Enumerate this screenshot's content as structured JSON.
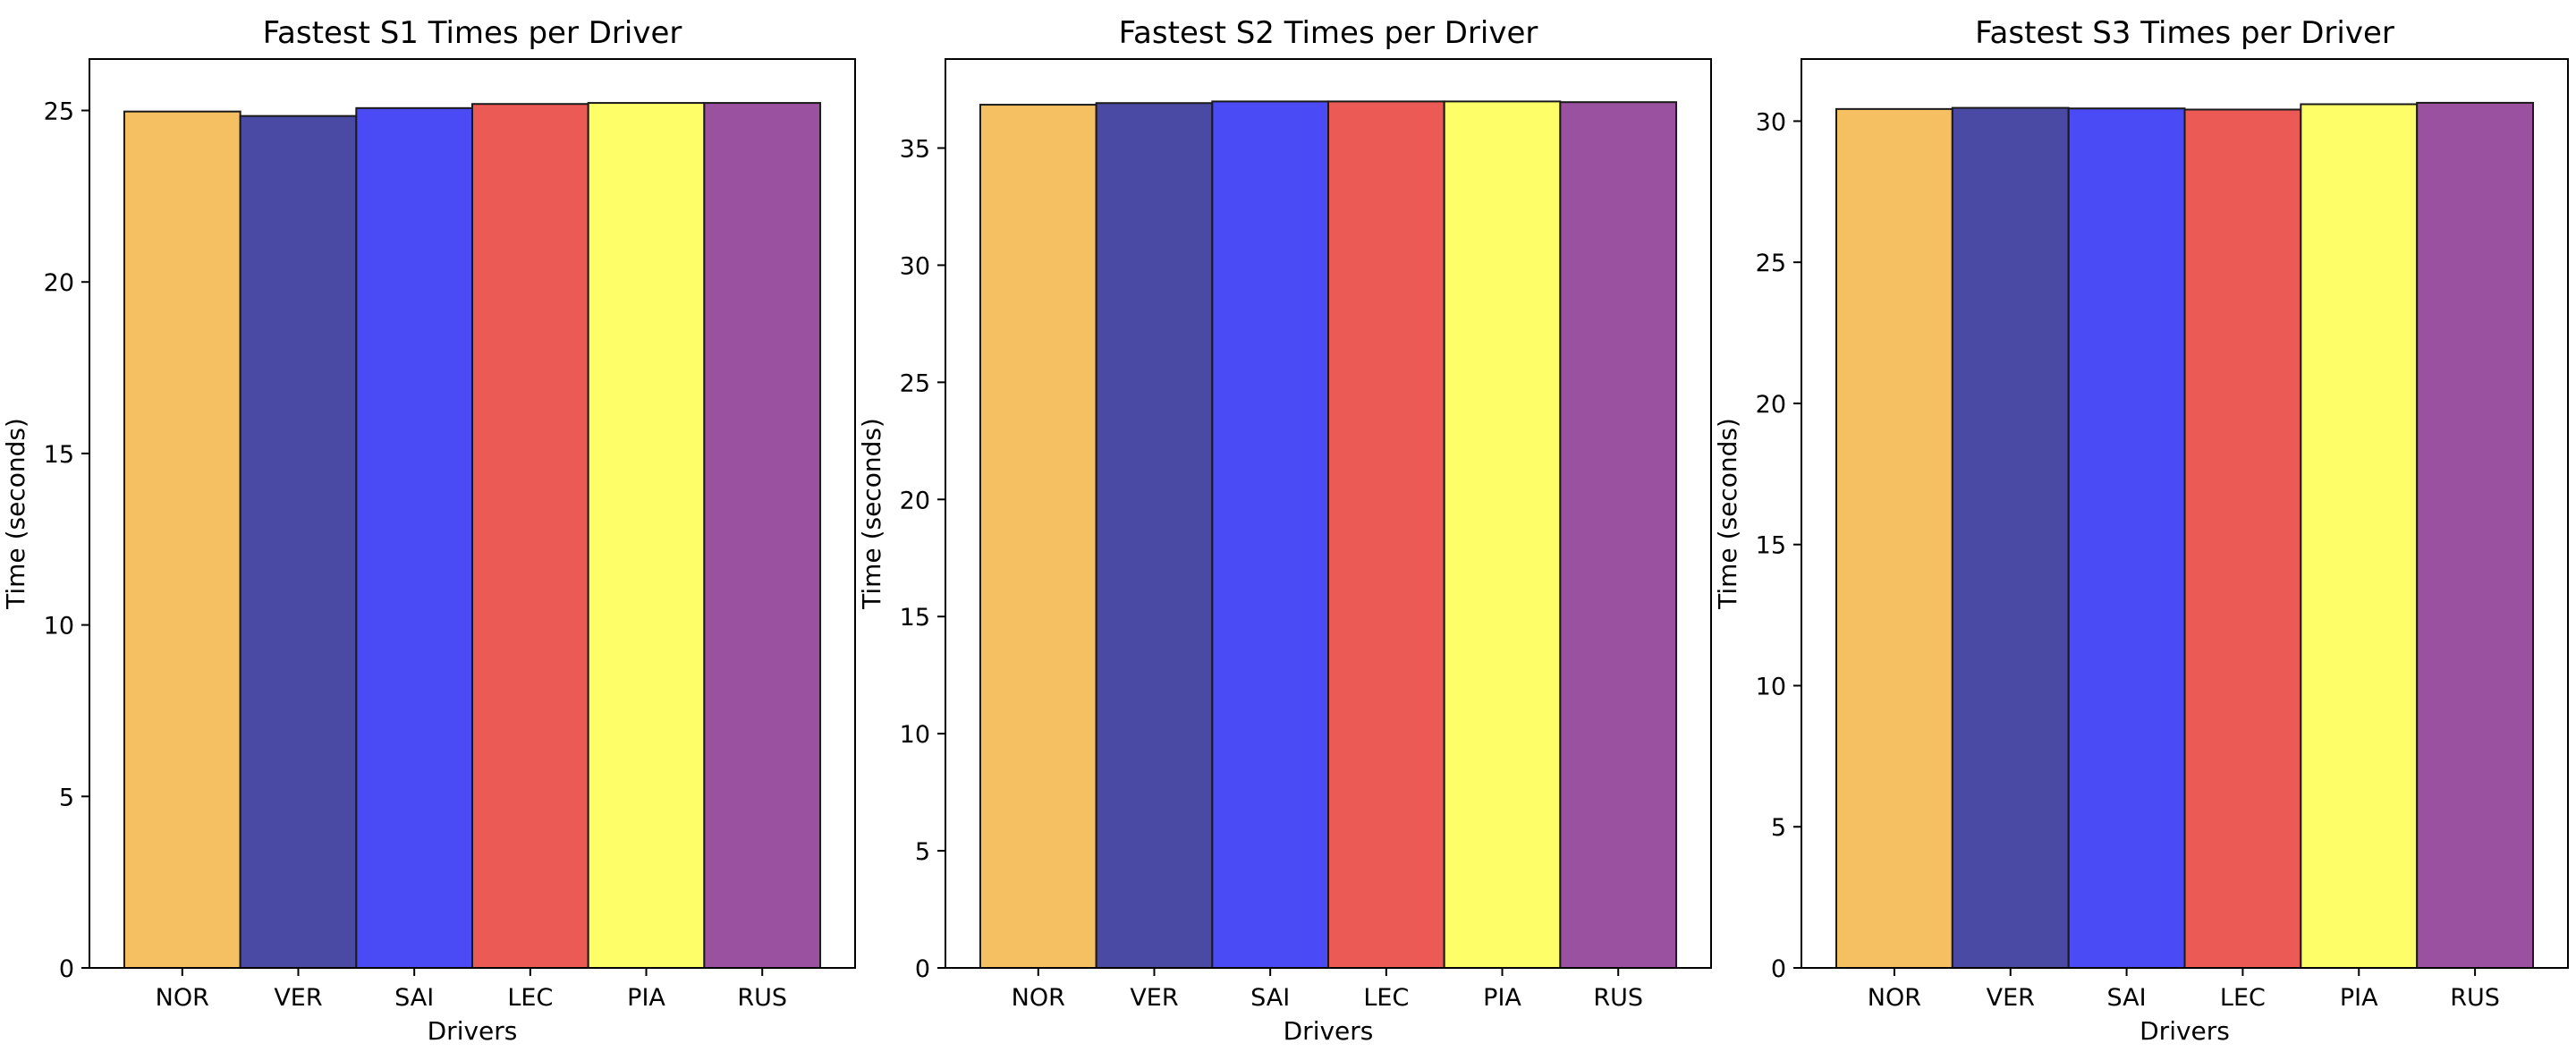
{
  "chart_data": [
    {
      "type": "bar",
      "title": "Fastest S1 Times per Driver",
      "xlabel": "Drivers",
      "ylabel": "Time (seconds)",
      "categories": [
        "NOR",
        "VER",
        "SAI",
        "LEC",
        "PIA",
        "RUS"
      ],
      "values": [
        24.97,
        24.84,
        25.07,
        25.19,
        25.22,
        25.22
      ],
      "colors": [
        "#f5c062",
        "#4a4aa5",
        "#4b4bf5",
        "#eb5a54",
        "#fefe68",
        "#9a51a0"
      ],
      "ylim": [
        0,
        26.5
      ],
      "yticks": [
        0,
        5,
        10,
        15,
        20,
        25
      ],
      "grid": false,
      "legend": false
    },
    {
      "type": "bar",
      "title": "Fastest S2 Times per Driver",
      "xlabel": "Drivers",
      "ylabel": "Time (seconds)",
      "categories": [
        "NOR",
        "VER",
        "SAI",
        "LEC",
        "PIA",
        "RUS"
      ],
      "values": [
        36.85,
        36.92,
        36.99,
        36.99,
        36.99,
        36.96
      ],
      "colors": [
        "#f5c062",
        "#4a4aa5",
        "#4b4bf5",
        "#eb5a54",
        "#fefe68",
        "#9a51a0"
      ],
      "ylim": [
        0,
        38.8
      ],
      "yticks": [
        0,
        5,
        10,
        15,
        20,
        25,
        30,
        35
      ],
      "grid": false,
      "legend": false
    },
    {
      "type": "bar",
      "title": "Fastest S3 Times per Driver",
      "xlabel": "Drivers",
      "ylabel": "Time (seconds)",
      "categories": [
        "NOR",
        "VER",
        "SAI",
        "LEC",
        "PIA",
        "RUS"
      ],
      "values": [
        30.43,
        30.47,
        30.45,
        30.41,
        30.6,
        30.65
      ],
      "colors": [
        "#f5c062",
        "#4a4aa5",
        "#4b4bf5",
        "#eb5a54",
        "#fefe68",
        "#9a51a0"
      ],
      "ylim": [
        0,
        32.2
      ],
      "yticks": [
        0,
        5,
        10,
        15,
        20,
        25,
        30
      ],
      "grid": false,
      "legend": false
    }
  ]
}
